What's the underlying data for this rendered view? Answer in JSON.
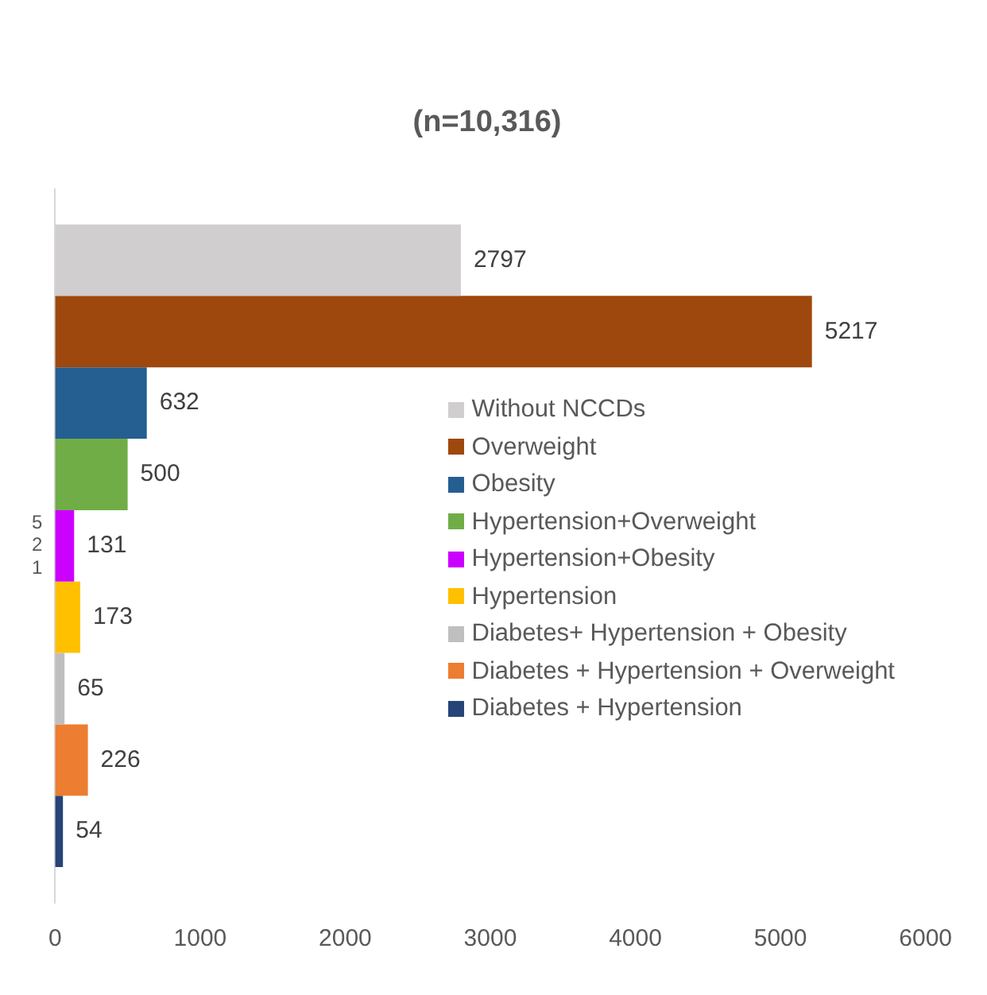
{
  "chart_data": {
    "type": "bar",
    "orientation": "horizontal",
    "title": "(n=10,316)",
    "categories": [
      "521"
    ],
    "series": [
      {
        "name": "Without NCCDs",
        "color": "#d0cece",
        "values": [
          2797
        ]
      },
      {
        "name": "Overweight",
        "color": "#9e480e",
        "values": [
          5217
        ]
      },
      {
        "name": "Obesity",
        "color": "#255e91",
        "values": [
          632
        ]
      },
      {
        "name": "Hypertension+Overweight",
        "color": "#70ad47",
        "values": [
          500
        ]
      },
      {
        "name": "Hypertension+Obesity",
        "color": "#cc00ff",
        "values": [
          131
        ]
      },
      {
        "name": "Hypertension",
        "color": "#ffc000",
        "values": [
          173
        ]
      },
      {
        "name": "Diabetes+ Hypertension + Obesity",
        "color": "#bfbfbf",
        "values": [
          65
        ]
      },
      {
        "name": "Diabetes + Hypertension + Overweight",
        "color": "#ed7d31",
        "values": [
          226
        ]
      },
      {
        "name": "Diabetes + Hypertension",
        "color": "#264478",
        "values": [
          54
        ]
      }
    ],
    "xlim": [
      0,
      6000
    ],
    "xticks": [
      0,
      1000,
      2000,
      3000,
      4000,
      5000,
      6000
    ],
    "grid": false,
    "legend": "right",
    "data_labels": true
  }
}
